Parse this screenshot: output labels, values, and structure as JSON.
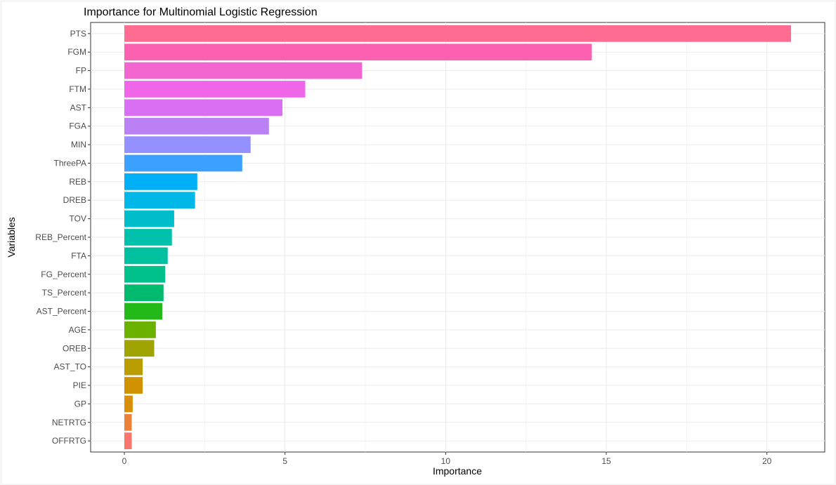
{
  "chart_data": {
    "type": "bar",
    "orientation": "horizontal",
    "title": "Importance for Multinomial Logistic Regression",
    "xlabel": "Importance",
    "ylabel": "Variables",
    "xlim": [
      -1.05,
      21.8
    ],
    "x_ticks": [
      0,
      5,
      10,
      15,
      20
    ],
    "grid": true,
    "legend": "none",
    "categories": [
      "PTS",
      "FGM",
      "FP",
      "FTM",
      "AST",
      "FGA",
      "MIN",
      "ThreePA",
      "REB",
      "DREB",
      "TOV",
      "REB_Percent",
      "FTA",
      "FG_Percent",
      "TS_Percent",
      "AST_Percent",
      "AGE",
      "OREB",
      "AST_TO",
      "PIE",
      "GP",
      "NETRTG",
      "OFFRTG"
    ],
    "values": [
      20.75,
      14.55,
      7.4,
      5.63,
      4.92,
      4.5,
      3.93,
      3.67,
      2.27,
      2.2,
      1.55,
      1.48,
      1.35,
      1.27,
      1.22,
      1.18,
      0.98,
      0.93,
      0.57,
      0.57,
      0.26,
      0.23,
      0.23
    ],
    "colors": [
      "#FF6C91",
      "#FC61B1",
      "#F265CE",
      "#F066E8",
      "#DA6FF4",
      "#BC80F5",
      "#9590FF",
      "#3CA0FF",
      "#00B0F6",
      "#00B8E7",
      "#00BEC9",
      "#00C1AB",
      "#00C19F",
      "#00C18A",
      "#00BA6E",
      "#23B918",
      "#6BB100",
      "#9FA400",
      "#BA9D00",
      "#D09200",
      "#D8900A",
      "#EC8239",
      "#F8766D"
    ]
  }
}
